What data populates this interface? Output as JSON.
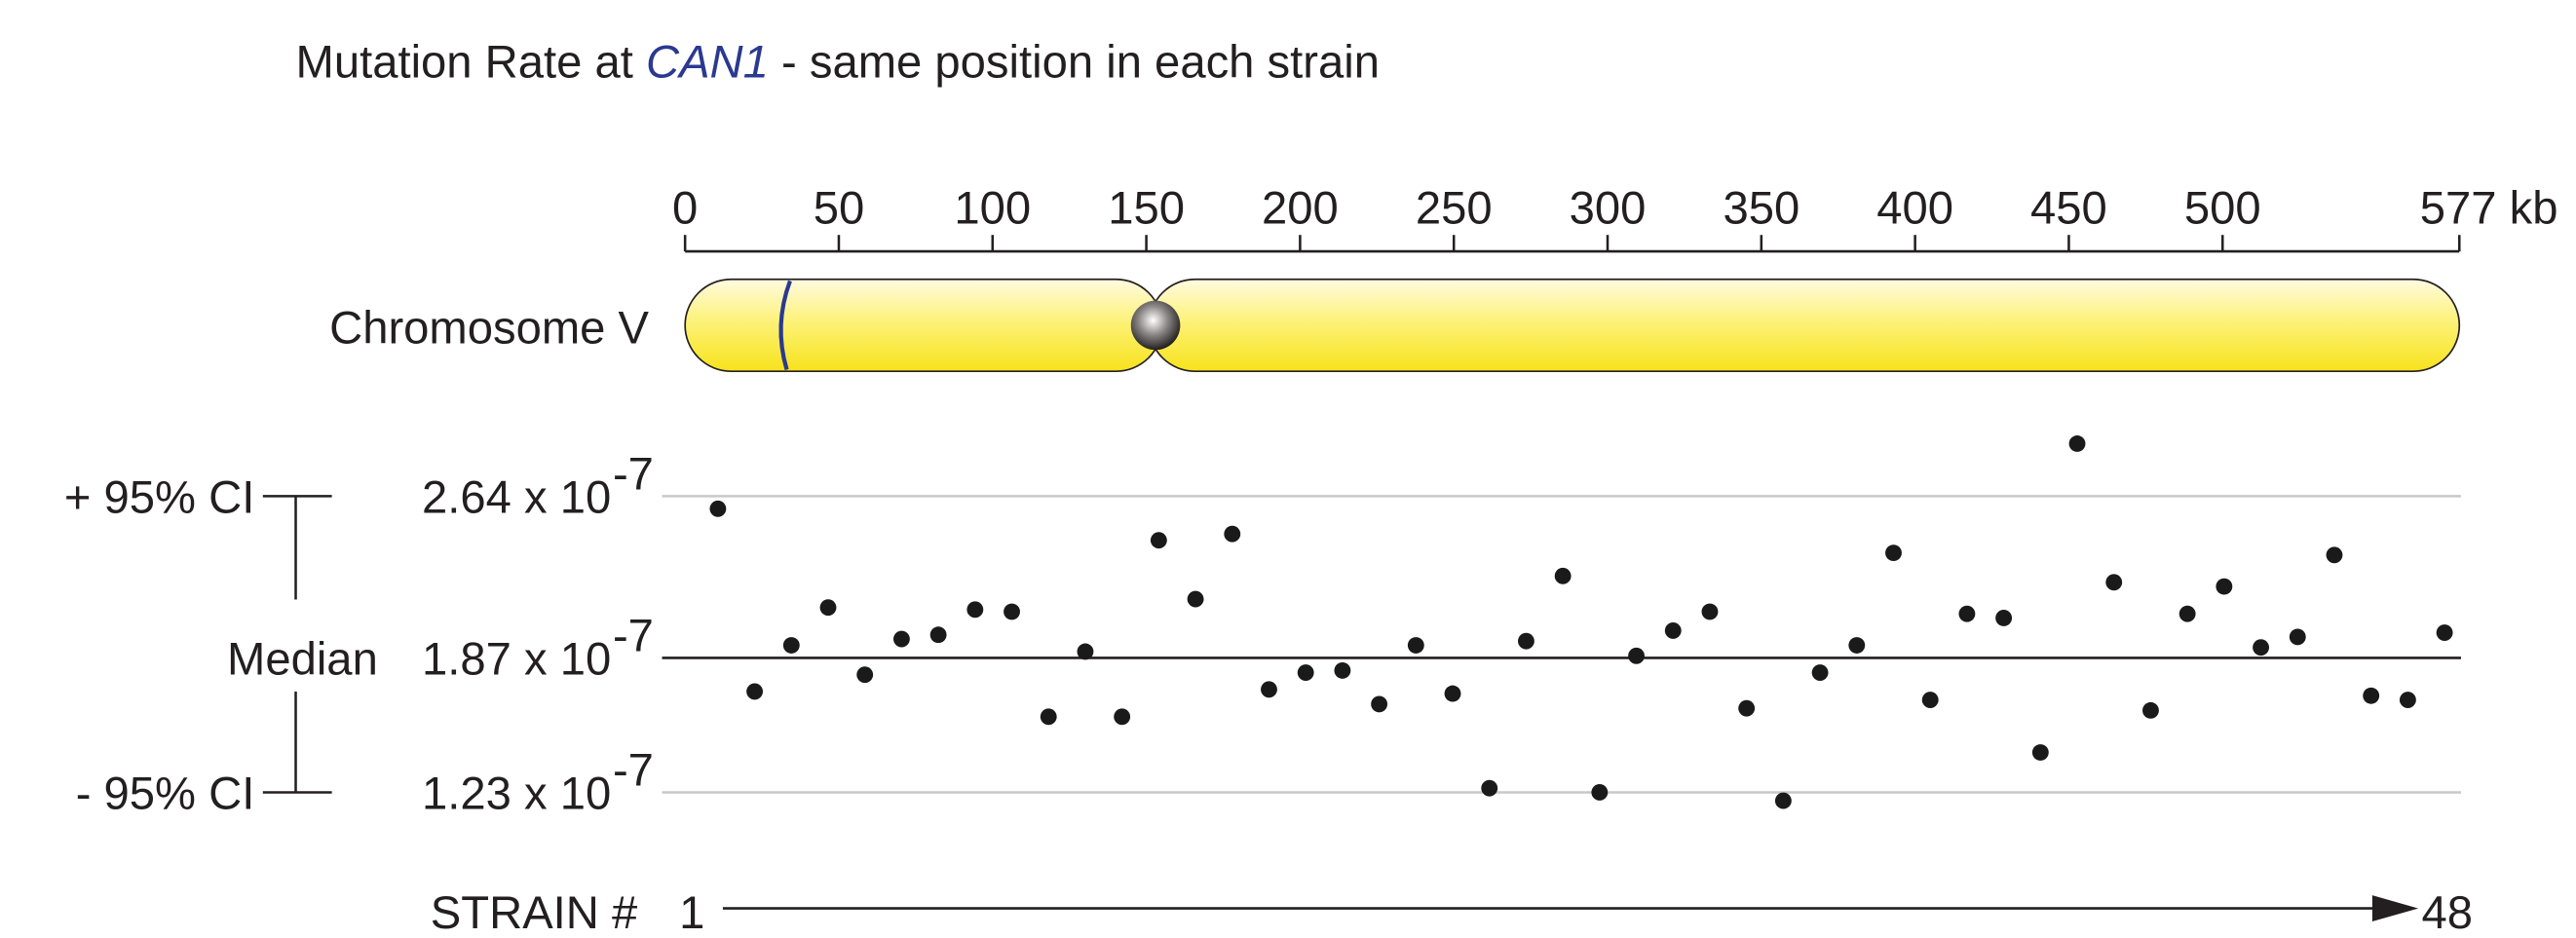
{
  "title": {
    "prefix": "Mutation Rate at ",
    "gene": "CAN1",
    "suffix": " - same position in each strain"
  },
  "chromosome": {
    "label": "Chromosome V",
    "xlim": [
      0,
      577
    ],
    "xticks": [
      0,
      50,
      100,
      150,
      200,
      250,
      300,
      350,
      400,
      450,
      500,
      {
        "value": 577,
        "label": "577 kb"
      }
    ],
    "centromere": 153,
    "can1": 32,
    "color": "#f7e21b",
    "marker_color": "#2b3990"
  },
  "chart_data": {
    "type": "scatter",
    "x": [
      1,
      2,
      3,
      4,
      5,
      6,
      7,
      8,
      9,
      10,
      11,
      12,
      13,
      14,
      15,
      16,
      17,
      18,
      19,
      20,
      21,
      22,
      23,
      24,
      25,
      26,
      27,
      28,
      29,
      30,
      31,
      32,
      33,
      34,
      35,
      36,
      37,
      38,
      39,
      40,
      41,
      42,
      43,
      44,
      45,
      46,
      47,
      48
    ],
    "values": [
      2.58,
      1.71,
      1.93,
      2.11,
      1.79,
      1.96,
      1.98,
      2.1,
      2.09,
      1.59,
      1.9,
      1.59,
      2.43,
      2.15,
      2.46,
      1.72,
      1.8,
      1.81,
      1.65,
      1.93,
      1.7,
      1.25,
      1.95,
      2.26,
      1.23,
      1.88,
      2.0,
      2.09,
      1.63,
      1.19,
      1.8,
      1.93,
      2.37,
      1.67,
      2.08,
      2.06,
      1.42,
      2.89,
      2.23,
      1.62,
      2.08,
      2.21,
      1.92,
      1.97,
      2.36,
      1.69,
      1.67,
      1.99
    ],
    "color": "#1a1a1a",
    "xlim": [
      1,
      48
    ],
    "xticks": [
      1,
      48
    ],
    "xlabel": "STRAIN #",
    "ylim": [
      1.1,
      3.0
    ],
    "yticks": [
      {
        "value": 1.23,
        "label": "1.23 x 10"
      },
      {
        "value": 1.87,
        "label": "1.87 x 10"
      },
      {
        "value": 2.64,
        "label": "2.64 x 10"
      }
    ],
    "ytick_exponent": "-7",
    "ytick_names": [
      "- 95% CI",
      "Median",
      "+ 95% CI"
    ]
  }
}
